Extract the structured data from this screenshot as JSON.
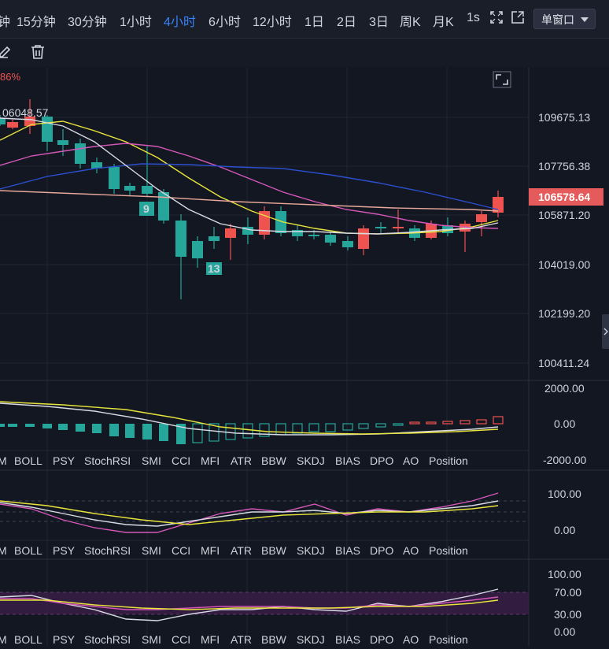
{
  "toolbar": {
    "intervals": [
      {
        "label": "钟",
        "active": false
      },
      {
        "label": "15分钟",
        "active": false
      },
      {
        "label": "30分钟",
        "active": false
      },
      {
        "label": "1小时",
        "active": false
      },
      {
        "label": "4小时",
        "active": true
      },
      {
        "label": "6小时",
        "active": false
      },
      {
        "label": "12小时",
        "active": false
      },
      {
        "label": "1日",
        "active": false
      },
      {
        "label": "2日",
        "active": false
      },
      {
        "label": "3日",
        "active": false
      },
      {
        "label": "周K",
        "active": false
      },
      {
        "label": "月K",
        "active": false
      },
      {
        "label": "1s",
        "active": false
      }
    ],
    "window_mode": "单窗口",
    "icons": [
      "fullscreen-icon",
      "popout-icon",
      "edit-icon",
      "trash-icon"
    ]
  },
  "main_chart": {
    "change_pct": "86%",
    "high_label": "06048.57",
    "current_price": "106578.64",
    "price_axis": [
      "109675.13",
      "107756.38",
      "105871.20",
      "104019.00",
      "102199.20",
      "100411.24"
    ],
    "markers": [
      "9",
      "13"
    ],
    "colors": {
      "up": "#ef5350",
      "down": "#26a69a",
      "accent": "#3b82f6"
    }
  },
  "indicator_tabs": [
    "M",
    "BOLL",
    "PSY",
    "StochRSI",
    "SMI",
    "CCI",
    "MFI",
    "ATR",
    "BBW",
    "SKDJ",
    "BIAS",
    "DPO",
    "AO",
    "Position"
  ],
  "macd_panel": {
    "axis": [
      "2000.00",
      "0.00",
      "-2000.00"
    ]
  },
  "kdj_panel": {
    "axis": [
      "100.00",
      "0.00"
    ]
  },
  "rsi_panel": {
    "axis": [
      "100.00",
      "70.00",
      "30.00",
      "0.00"
    ]
  }
}
